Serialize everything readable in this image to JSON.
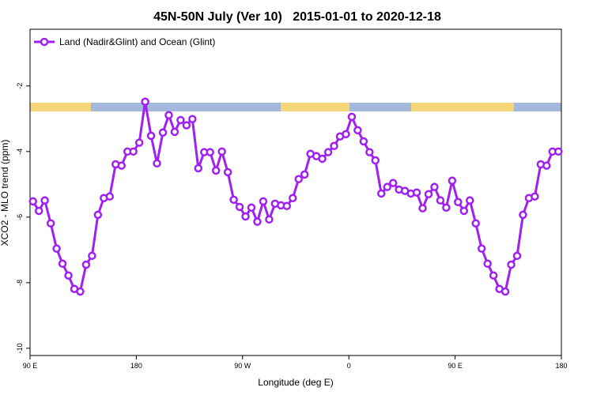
{
  "chart_data": {
    "type": "line",
    "title": "45N-50N July (Ver 10)   2015-01-01 to 2020-12-18",
    "x_label": "Longitude (deg E)",
    "y_label": "XCO2 - MLO trend (ppm)",
    "x": [
      92.5,
      97.5,
      102.5,
      107.5,
      112.5,
      117.5,
      122.5,
      127.5,
      132.5,
      137.5,
      142.5,
      147.5,
      152.5,
      157.5,
      162.5,
      167.5,
      172.5,
      177.5,
      182.5,
      187.5,
      192.5,
      197.5,
      202.5,
      207.5,
      212.5,
      217.5,
      222.5,
      227.5,
      232.5,
      237.5,
      242.5,
      247.5,
      252.5,
      257.5,
      262.5,
      267.5,
      272.5,
      277.5,
      282.5,
      287.5,
      292.5,
      297.5,
      302.5,
      307.5,
      312.5,
      317.5,
      322.5,
      327.5,
      332.5,
      337.5,
      342.5,
      347.5,
      352.5,
      357.5,
      362.5,
      367.5,
      372.5,
      377.5,
      382.5,
      387.5,
      392.5,
      397.5,
      402.5,
      407.5,
      412.5,
      417.5,
      422.5,
      427.5,
      432.5,
      437.5,
      442.5,
      447.5,
      452.5,
      457.5,
      462.5,
      467.5,
      472.5,
      477.5,
      482.5,
      487.5,
      492.5,
      497.5,
      502.5,
      507.5,
      512.5,
      517.5,
      522.5,
      527.5,
      532.5,
      537.5
    ],
    "series": [
      {
        "name": "Land (Nadir&Glint) and Ocean (Glint)",
        "color": "#a020f0",
        "values": [
          -5.52,
          -5.81,
          -5.49,
          -6.19,
          -6.96,
          -7.42,
          -7.78,
          -8.19,
          -8.27,
          -7.45,
          -7.18,
          -5.93,
          -5.42,
          -5.37,
          -4.39,
          -4.43,
          -4.0,
          -4.0,
          -3.73,
          -2.48,
          -3.52,
          -4.36,
          -3.42,
          -2.89,
          -3.4,
          -3.04,
          -3.2,
          -3.01,
          -4.51,
          -4.02,
          -4.02,
          -4.58,
          -4.0,
          -4.63,
          -5.47,
          -5.69,
          -5.98,
          -5.71,
          -6.14,
          -5.52,
          -6.07,
          -5.59,
          -5.64,
          -5.66,
          -5.42,
          -4.84,
          -4.7,
          -4.07,
          -4.14,
          -4.22,
          -4.02,
          -3.83,
          -3.54,
          -3.47,
          -2.94,
          -3.35,
          -3.69,
          -4.02,
          -4.27,
          -5.28,
          -5.08,
          -4.96,
          -5.16,
          -5.2,
          -5.28,
          -5.25,
          -5.73,
          -5.3,
          -5.08,
          -5.49,
          -5.71,
          -4.89,
          -5.54,
          -5.81,
          -5.49,
          -6.19,
          -6.96,
          -7.42,
          -7.78,
          -8.19,
          -8.27,
          -7.45,
          -7.18,
          -5.93,
          -5.42,
          -5.37,
          -4.39,
          -4.43,
          -4.0,
          -4.0
        ]
      }
    ],
    "xlim": [
      90,
      540
    ],
    "xticks": [
      {
        "value": 90,
        "label": "90 E"
      },
      180,
      {
        "value": 270,
        "label": "90 W"
      },
      {
        "value": 360,
        "label": "0"
      },
      {
        "value": 450,
        "label": "90 E"
      },
      {
        "value": 540,
        "label": "180"
      }
    ],
    "ylim": [
      -10.22,
      -0.27
    ],
    "yticks": [
      -2,
      -4,
      -6,
      -8,
      -10
    ],
    "legend": "upper left"
  }
}
